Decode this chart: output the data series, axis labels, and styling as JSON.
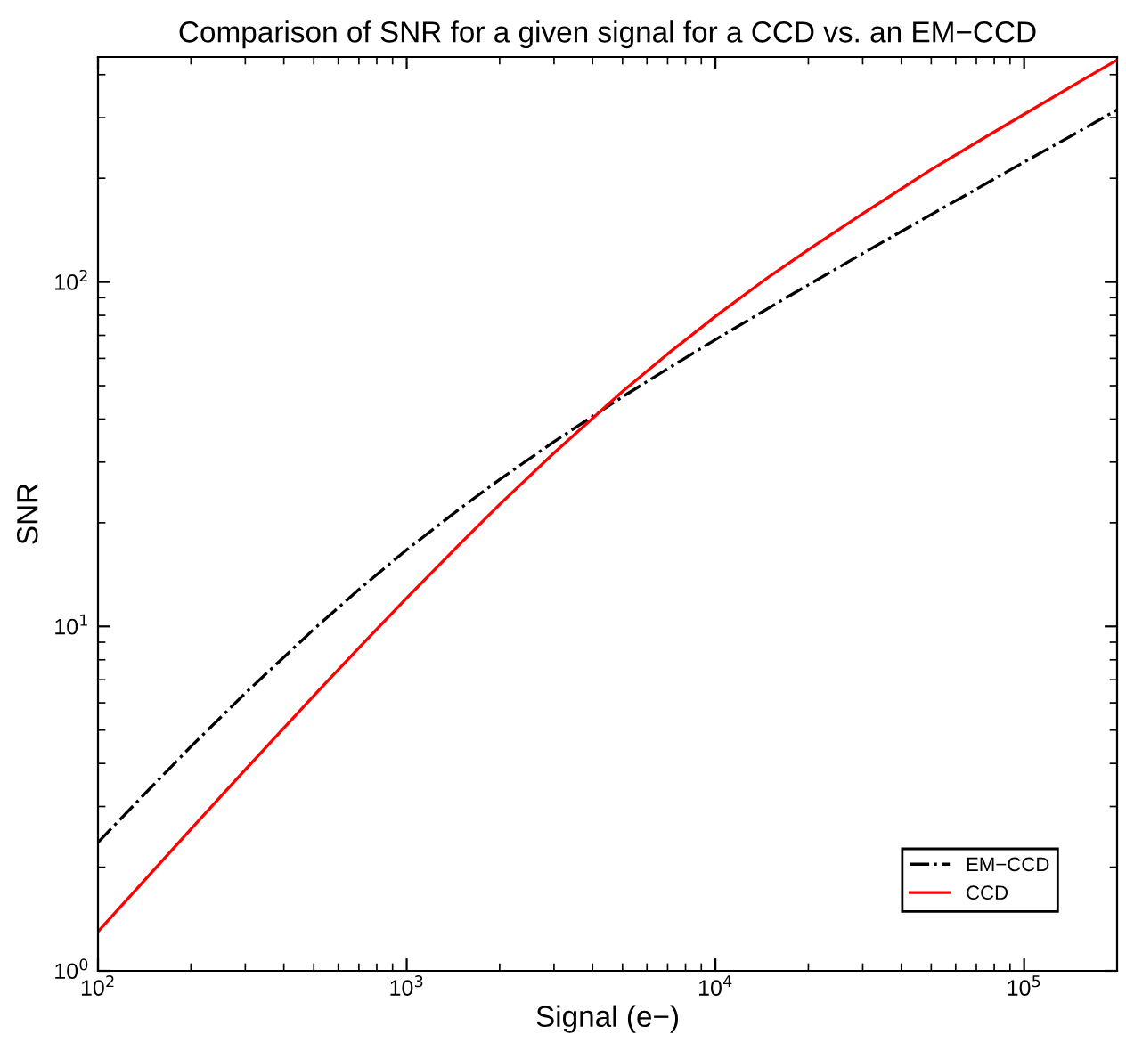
{
  "chart_data": {
    "type": "line",
    "title": "Comparison of SNR for a given signal for a CCD vs. an EM−CCD",
    "xlabel": "Signal (e−)",
    "ylabel": "SNR",
    "log": "xy",
    "x": [
      100,
      150,
      200,
      300,
      500,
      700,
      1000,
      1500,
      2000,
      3000,
      5000,
      7000,
      10000,
      15000,
      20000,
      30000,
      50000,
      70000,
      100000,
      150000,
      200000
    ],
    "series": [
      {
        "name": "EM−CCD",
        "color": "#000000",
        "line_style": "dashdot",
        "values": [
          2.36,
          3.44,
          4.48,
          6.4,
          9.81,
          12.8,
          16.7,
          22.1,
          26.7,
          34.4,
          46.4,
          56,
          68,
          84.4,
          98.1,
          121,
          157,
          186,
          223,
          273,
          316
        ]
      },
      {
        "name": "CCD",
        "color": "#ff0000",
        "line_style": "solid",
        "values": [
          1.3,
          1.94,
          2.58,
          3.84,
          6.29,
          8.67,
          12.1,
          17.5,
          22.6,
          31.9,
          48.1,
          61.8,
          79.5,
          104,
          124,
          158,
          212,
          254,
          307,
          380,
          441
        ]
      }
    ],
    "xlim": [
      100,
      200000
    ],
    "ylim": [
      1,
      450
    ],
    "xticks": [
      {
        "value": 100,
        "label": "10$^{2}$"
      },
      {
        "value": 1000,
        "label": "10$^{3}$"
      },
      {
        "value": 10000,
        "label": "10$^{4}$"
      },
      {
        "value": 100000,
        "label": "10$^{5}$"
      }
    ],
    "yticks": [
      {
        "value": 1,
        "label": "10$^{0}$"
      },
      {
        "value": 10,
        "label": "10$^{1}$"
      },
      {
        "value": 100,
        "label": "10$^{2}$"
      }
    ],
    "grid": false,
    "legend": "bottom right",
    "marker": "none"
  }
}
